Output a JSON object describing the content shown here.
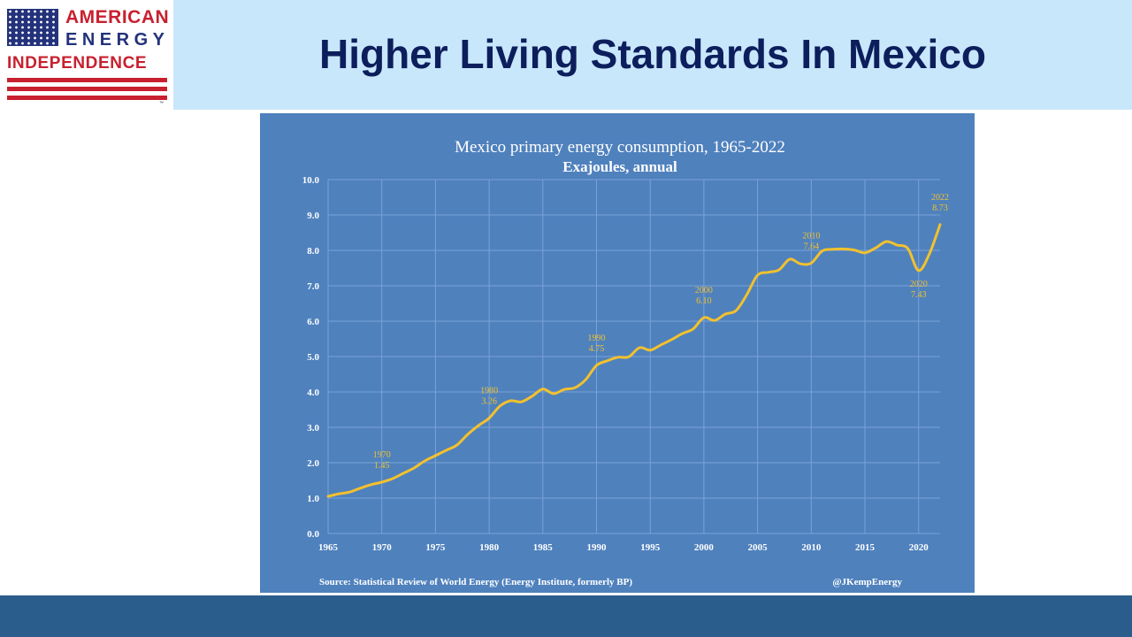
{
  "logo": {
    "line1": "AMERICAN",
    "line2": "ENERGY",
    "line3": "INDEPENDENCE",
    "tm": "™"
  },
  "header": {
    "title": "Higher Living Standards In Mexico"
  },
  "colors": {
    "header_bg": "#c9e7fb",
    "title_text": "#0d1e5c",
    "chart_bg": "#4f81bd",
    "line": "#f2c12e",
    "footer_bar": "#2b5d8c",
    "logo_red": "#c8202f",
    "logo_blue": "#23327a"
  },
  "chart_data": {
    "type": "line",
    "title": "Mexico primary energy consumption, 1965-2022",
    "subtitle": "Exajoules, annual",
    "xlabel": "",
    "ylabel": "",
    "xlim": [
      1965,
      2022
    ],
    "ylim": [
      0,
      10
    ],
    "grid": true,
    "x_ticks": [
      "1965",
      "1970",
      "1975",
      "1980",
      "1985",
      "1990",
      "1995",
      "2000",
      "2005",
      "2010",
      "2015",
      "2020"
    ],
    "y_ticks": [
      "0.0",
      "1.0",
      "2.0",
      "3.0",
      "4.0",
      "5.0",
      "6.0",
      "7.0",
      "8.0",
      "9.0",
      "10.0"
    ],
    "series": [
      {
        "x": [
          1965,
          1966,
          1967,
          1968,
          1969,
          1970,
          1971,
          1972,
          1973,
          1974,
          1975,
          1976,
          1977,
          1978,
          1979,
          1980,
          1981,
          1982,
          1983,
          1984,
          1985,
          1986,
          1987,
          1988,
          1989,
          1990,
          1991,
          1992,
          1993,
          1994,
          1995,
          1996,
          1997,
          1998,
          1999,
          2000,
          2001,
          2002,
          2003,
          2004,
          2005,
          2006,
          2007,
          2008,
          2009,
          2010,
          2011,
          2012,
          2013,
          2014,
          2015,
          2016,
          2017,
          2018,
          2019,
          2020,
          2021,
          2022
        ],
        "y": [
          1.05,
          1.12,
          1.17,
          1.28,
          1.38,
          1.45,
          1.55,
          1.7,
          1.85,
          2.05,
          2.2,
          2.35,
          2.5,
          2.8,
          3.05,
          3.26,
          3.6,
          3.75,
          3.72,
          3.88,
          4.08,
          3.95,
          4.07,
          4.12,
          4.35,
          4.75,
          4.88,
          4.98,
          4.99,
          5.25,
          5.18,
          5.33,
          5.48,
          5.65,
          5.78,
          6.1,
          6.02,
          6.2,
          6.3,
          6.75,
          7.3,
          7.38,
          7.45,
          7.75,
          7.62,
          7.64,
          7.98,
          8.03,
          8.04,
          8.01,
          7.93,
          8.07,
          8.25,
          8.15,
          8.05,
          7.43,
          7.9,
          8.73
        ]
      }
    ],
    "annotations": [
      {
        "year": "1970",
        "value": "1.45",
        "x": 1970,
        "y": 1.45,
        "pos": "above"
      },
      {
        "year": "1980",
        "value": "3.26",
        "x": 1980,
        "y": 3.26,
        "pos": "above"
      },
      {
        "year": "1990",
        "value": "4.75",
        "x": 1990,
        "y": 4.75,
        "pos": "above"
      },
      {
        "year": "2000",
        "value": "6.10",
        "x": 2000,
        "y": 6.1,
        "pos": "above"
      },
      {
        "year": "2010",
        "value": "7.64",
        "x": 2010,
        "y": 7.64,
        "pos": "above"
      },
      {
        "year": "2020",
        "value": "7.43",
        "x": 2020,
        "y": 7.43,
        "pos": "below"
      },
      {
        "year": "2022",
        "value": "8.73",
        "x": 2022,
        "y": 8.73,
        "pos": "above"
      }
    ],
    "source": "Source: Statistical Review of World Energy (Energy Institute, formerly BP)",
    "credit": "@JKempEnergy"
  }
}
